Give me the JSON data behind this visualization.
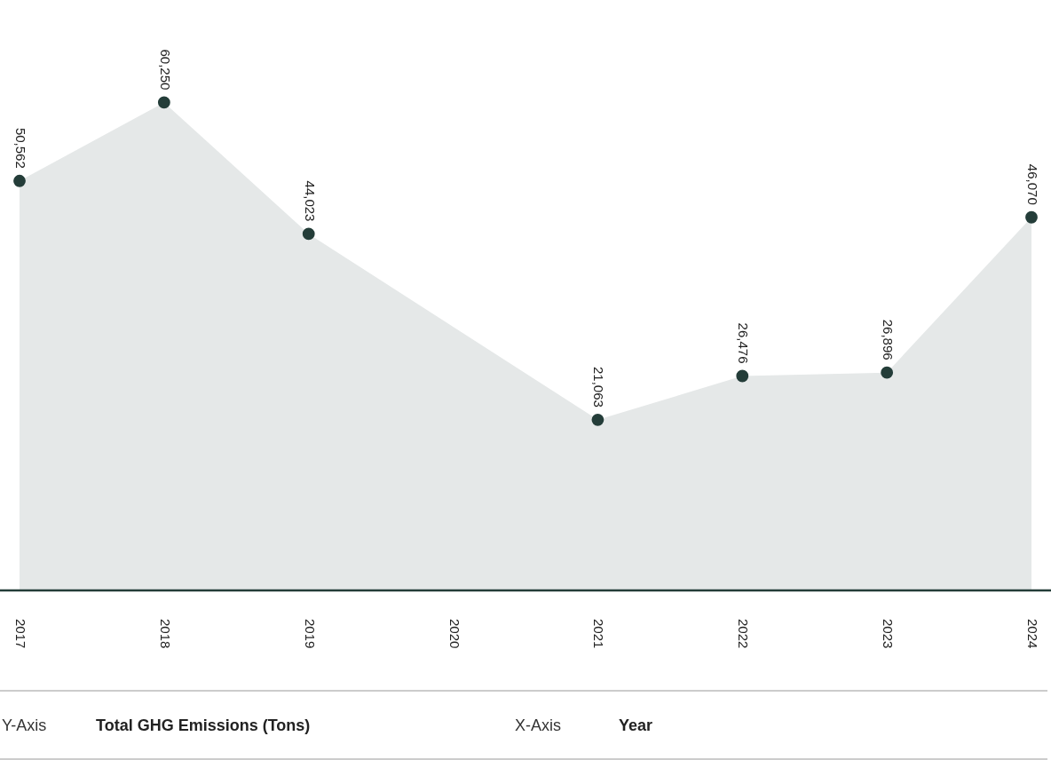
{
  "chart_data": {
    "type": "area",
    "categories": [
      "2017",
      "2018",
      "2019",
      "2020",
      "2021",
      "2022",
      "2023",
      "2024"
    ],
    "series": [
      {
        "color": "#e5e8e8",
        "values": [
          50562,
          60250,
          44023,
          null,
          21063,
          26476,
          26896,
          46070
        ],
        "value_labels": [
          "50,562",
          "60,250",
          "44,023",
          null,
          "21,063",
          "26,476",
          "26,896",
          "46,070"
        ]
      }
    ],
    "marker": "circle",
    "annotations": [
      "Y-Axis",
      "Total GHG Emissions (Tons)",
      "X-Axis",
      "Year"
    ]
  }
}
